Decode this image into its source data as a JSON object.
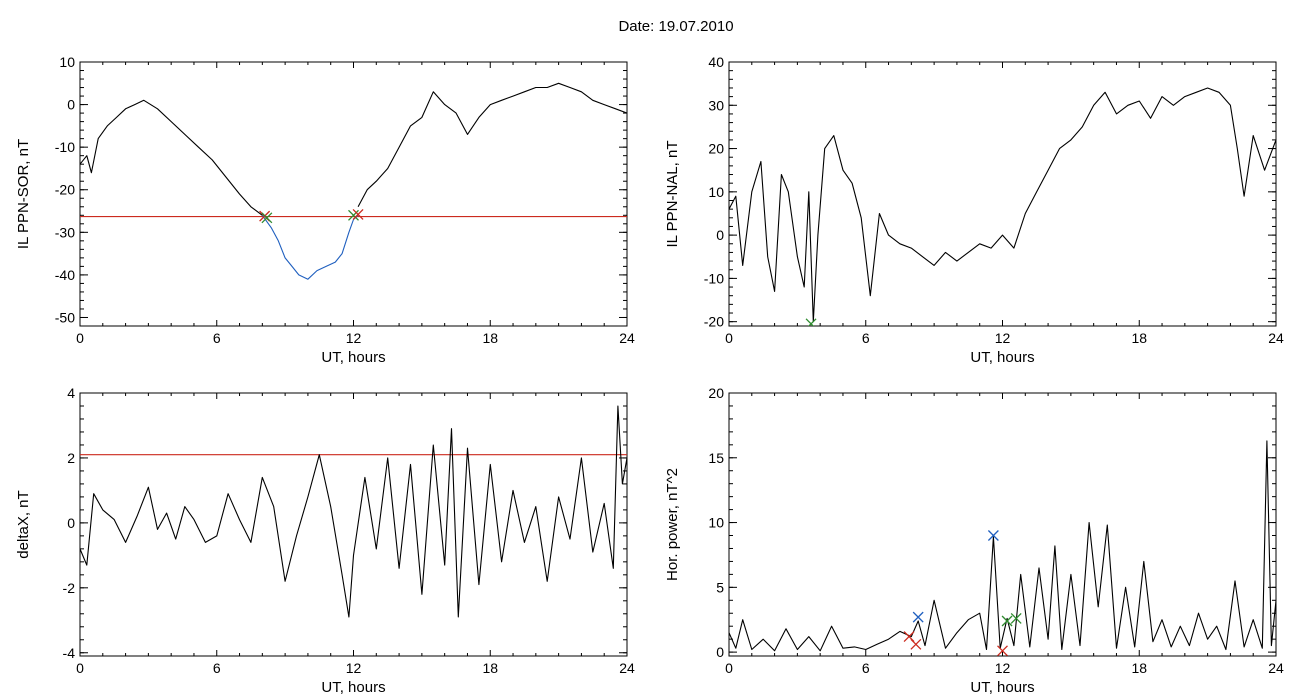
{
  "title": "Date:  19.07.2010",
  "chart_data": [
    {
      "type": "line",
      "xlabel": "UT, hours",
      "ylabel": "IL PPN-SOR, nT",
      "xlim": [
        0,
        24
      ],
      "ylim": [
        -52,
        10
      ],
      "xticks": [
        0,
        6,
        12,
        18,
        24
      ],
      "yticks": [
        -50,
        -40,
        -30,
        -20,
        -10,
        0,
        10
      ],
      "series": [
        {
          "color": "#000000",
          "x": [
            0,
            0.3,
            0.5,
            0.8,
            1.2,
            1.6,
            2.0,
            2.4,
            2.8,
            3.4,
            4.0,
            4.6,
            5.2,
            5.8,
            6.4,
            7.0,
            7.5,
            8.0
          ],
          "y": [
            -14,
            -12,
            -16,
            -8,
            -5,
            -3,
            -1,
            0,
            1,
            -1,
            -4,
            -7,
            -10,
            -13,
            -17,
            -21,
            -24,
            -26
          ]
        },
        {
          "color": "#1f5fbf",
          "x": [
            8.0,
            8.4,
            8.7,
            9.0,
            9.3,
            9.6,
            10.0,
            10.4,
            10.8,
            11.2,
            11.5,
            11.8,
            12.0,
            12.2
          ],
          "y": [
            -26,
            -29,
            -32,
            -36,
            -38,
            -40,
            -41,
            -39,
            -38,
            -37,
            -35,
            -30,
            -27,
            -26
          ]
        },
        {
          "color": "#000000",
          "x": [
            12.2,
            12.6,
            13.0,
            13.5,
            14.0,
            14.5,
            15.0,
            15.5,
            16.0,
            16.5,
            17.0,
            17.5,
            18.0,
            18.5,
            19.0,
            19.5,
            20.0,
            20.5,
            21.0,
            21.5,
            22.0,
            22.5,
            23.0,
            23.5,
            24.0
          ],
          "y": [
            -24,
            -20,
            -18,
            -15,
            -10,
            -5,
            -3,
            3,
            0,
            -2,
            -7,
            -3,
            0,
            1,
            2,
            3,
            4,
            4,
            5,
            4,
            3,
            1,
            0,
            -1,
            -2
          ]
        }
      ],
      "threshold": -26.3,
      "threshold_color": "#cc2a1e",
      "markers": [
        {
          "x": 8.1,
          "y": -26.2,
          "color": "#cc2a1e"
        },
        {
          "x": 8.2,
          "y": -26.6,
          "color": "#2e8b2e"
        },
        {
          "x": 12.0,
          "y": -26.0,
          "color": "#2e8b2e"
        },
        {
          "x": 12.2,
          "y": -25.8,
          "color": "#cc2a1e"
        }
      ]
    },
    {
      "type": "line",
      "xlabel": "UT, hours",
      "ylabel": "IL PPN-NAL, nT",
      "xlim": [
        0,
        24
      ],
      "ylim": [
        -21,
        40
      ],
      "xticks": [
        0,
        6,
        12,
        18,
        24
      ],
      "yticks": [
        -20,
        -10,
        0,
        10,
        20,
        30,
        40
      ],
      "series": [
        {
          "color": "#000000",
          "x": [
            0,
            0.3,
            0.6,
            1.0,
            1.4,
            1.7,
            2.0,
            2.3,
            2.6,
            3.0,
            3.3,
            3.5,
            3.7,
            3.9,
            4.2,
            4.6,
            5.0,
            5.4,
            5.8,
            6.2,
            6.6,
            7.0,
            7.5,
            8.0,
            8.5,
            9.0,
            9.5,
            10.0,
            10.5,
            11.0,
            11.5,
            12.0,
            12.5,
            13.0,
            13.5,
            14.0,
            14.5,
            15.0,
            15.5,
            16.0,
            16.5,
            17.0,
            17.5,
            18.0,
            18.5,
            19.0,
            19.5,
            20.0,
            20.5,
            21.0,
            21.5,
            22.0,
            22.3,
            22.6,
            23.0,
            23.5,
            24.0
          ],
          "y": [
            6,
            9,
            -7,
            10,
            17,
            -5,
            -13,
            14,
            10,
            -5,
            -12,
            10,
            -20,
            0,
            20,
            23,
            15,
            12,
            4,
            -14,
            5,
            0,
            -2,
            -3,
            -5,
            -7,
            -4,
            -6,
            -4,
            -2,
            -3,
            0,
            -3,
            5,
            10,
            15,
            20,
            22,
            25,
            30,
            33,
            28,
            30,
            31,
            27,
            32,
            30,
            32,
            33,
            34,
            33,
            30,
            20,
            9,
            23,
            15,
            22
          ]
        }
      ],
      "markers": [
        {
          "x": 3.6,
          "y": -20.5,
          "color": "#2e8b2e"
        }
      ]
    },
    {
      "type": "line",
      "xlabel": "UT, hours",
      "ylabel": "deltaX, nT",
      "xlim": [
        0,
        24
      ],
      "ylim": [
        -4.1,
        4
      ],
      "xticks": [
        0,
        6,
        12,
        18,
        24
      ],
      "yticks": [
        -4,
        -2,
        0,
        2,
        4
      ],
      "series": [
        {
          "color": "#000000",
          "x": [
            0,
            0.3,
            0.6,
            1.0,
            1.5,
            2.0,
            2.5,
            3.0,
            3.4,
            3.8,
            4.2,
            4.6,
            5.0,
            5.5,
            6.0,
            6.5,
            7.0,
            7.5,
            8.0,
            8.5,
            9.0,
            9.5,
            10.0,
            10.5,
            11.0,
            11.5,
            11.8,
            12.0,
            12.5,
            13.0,
            13.5,
            14.0,
            14.5,
            15.0,
            15.5,
            16.0,
            16.3,
            16.6,
            17.0,
            17.5,
            18.0,
            18.5,
            19.0,
            19.5,
            20.0,
            20.5,
            21.0,
            21.5,
            22.0,
            22.5,
            23.0,
            23.4,
            23.6,
            23.8,
            24.0
          ],
          "y": [
            -0.8,
            -1.3,
            0.9,
            0.4,
            0.1,
            -0.6,
            0.2,
            1.1,
            -0.2,
            0.3,
            -0.5,
            0.5,
            0.1,
            -0.6,
            -0.4,
            0.9,
            0.1,
            -0.6,
            1.4,
            0.5,
            -1.8,
            -0.4,
            0.8,
            2.1,
            0.5,
            -1.6,
            -2.9,
            -1.0,
            1.4,
            -0.8,
            2.0,
            -1.4,
            1.8,
            -2.2,
            2.4,
            -1.3,
            2.9,
            -2.9,
            2.3,
            -1.9,
            1.8,
            -1.2,
            1.0,
            -0.6,
            0.5,
            -1.8,
            0.8,
            -0.5,
            2.0,
            -0.9,
            0.6,
            -1.4,
            3.6,
            1.2,
            2.0
          ]
        }
      ],
      "threshold": 2.1,
      "threshold_color": "#cc2a1e"
    },
    {
      "type": "line",
      "xlabel": "UT, hours",
      "ylabel": "Hor. power, nT^2",
      "xlim": [
        0,
        24
      ],
      "ylim": [
        -0.3,
        20
      ],
      "xticks": [
        0,
        6,
        12,
        18,
        24
      ],
      "yticks": [
        0,
        5,
        10,
        15,
        20
      ],
      "series": [
        {
          "color": "#000000",
          "x": [
            0,
            0.3,
            0.6,
            1.0,
            1.5,
            2.0,
            2.5,
            3.0,
            3.5,
            4.0,
            4.5,
            5.0,
            5.5,
            6.0,
            6.5,
            7.0,
            7.5,
            8.0,
            8.3,
            8.6,
            9.0,
            9.5,
            10.0,
            10.5,
            11.0,
            11.3,
            11.6,
            11.9,
            12.2,
            12.5,
            12.8,
            13.2,
            13.6,
            14.0,
            14.3,
            14.6,
            15.0,
            15.4,
            15.8,
            16.2,
            16.6,
            17.0,
            17.4,
            17.8,
            18.2,
            18.6,
            19.0,
            19.4,
            19.8,
            20.2,
            20.6,
            21.0,
            21.4,
            21.8,
            22.2,
            22.6,
            23.0,
            23.4,
            23.6,
            23.8,
            24.0
          ],
          "y": [
            1.5,
            0.3,
            2.5,
            0.2,
            1.0,
            0.1,
            1.8,
            0.2,
            1.2,
            0.1,
            2.0,
            0.3,
            0.4,
            0.2,
            0.6,
            1.0,
            1.6,
            1.2,
            2.4,
            0.5,
            4.0,
            0.3,
            1.5,
            2.5,
            3.0,
            0.2,
            8.9,
            0.3,
            2.6,
            0.5,
            6.0,
            0.4,
            6.5,
            1.0,
            8.2,
            0.2,
            6.0,
            0.5,
            10.0,
            3.5,
            9.8,
            0.3,
            5.0,
            0.4,
            7.0,
            0.8,
            2.5,
            0.4,
            2.0,
            0.5,
            3.0,
            1.0,
            2.0,
            0.2,
            5.5,
            0.4,
            2.5,
            0.3,
            16.3,
            0.5,
            4.0
          ]
        }
      ],
      "markers": [
        {
          "x": 7.9,
          "y": 1.2,
          "color": "#cc2a1e"
        },
        {
          "x": 8.2,
          "y": 0.6,
          "color": "#cc2a1e"
        },
        {
          "x": 8.3,
          "y": 2.7,
          "color": "#1f5fbf"
        },
        {
          "x": 11.6,
          "y": 9.0,
          "color": "#1f5fbf"
        },
        {
          "x": 12.0,
          "y": 0.1,
          "color": "#cc2a1e"
        },
        {
          "x": 12.2,
          "y": 2.4,
          "color": "#2e8b2e"
        },
        {
          "x": 12.6,
          "y": 2.6,
          "color": "#2e8b2e"
        }
      ]
    }
  ]
}
